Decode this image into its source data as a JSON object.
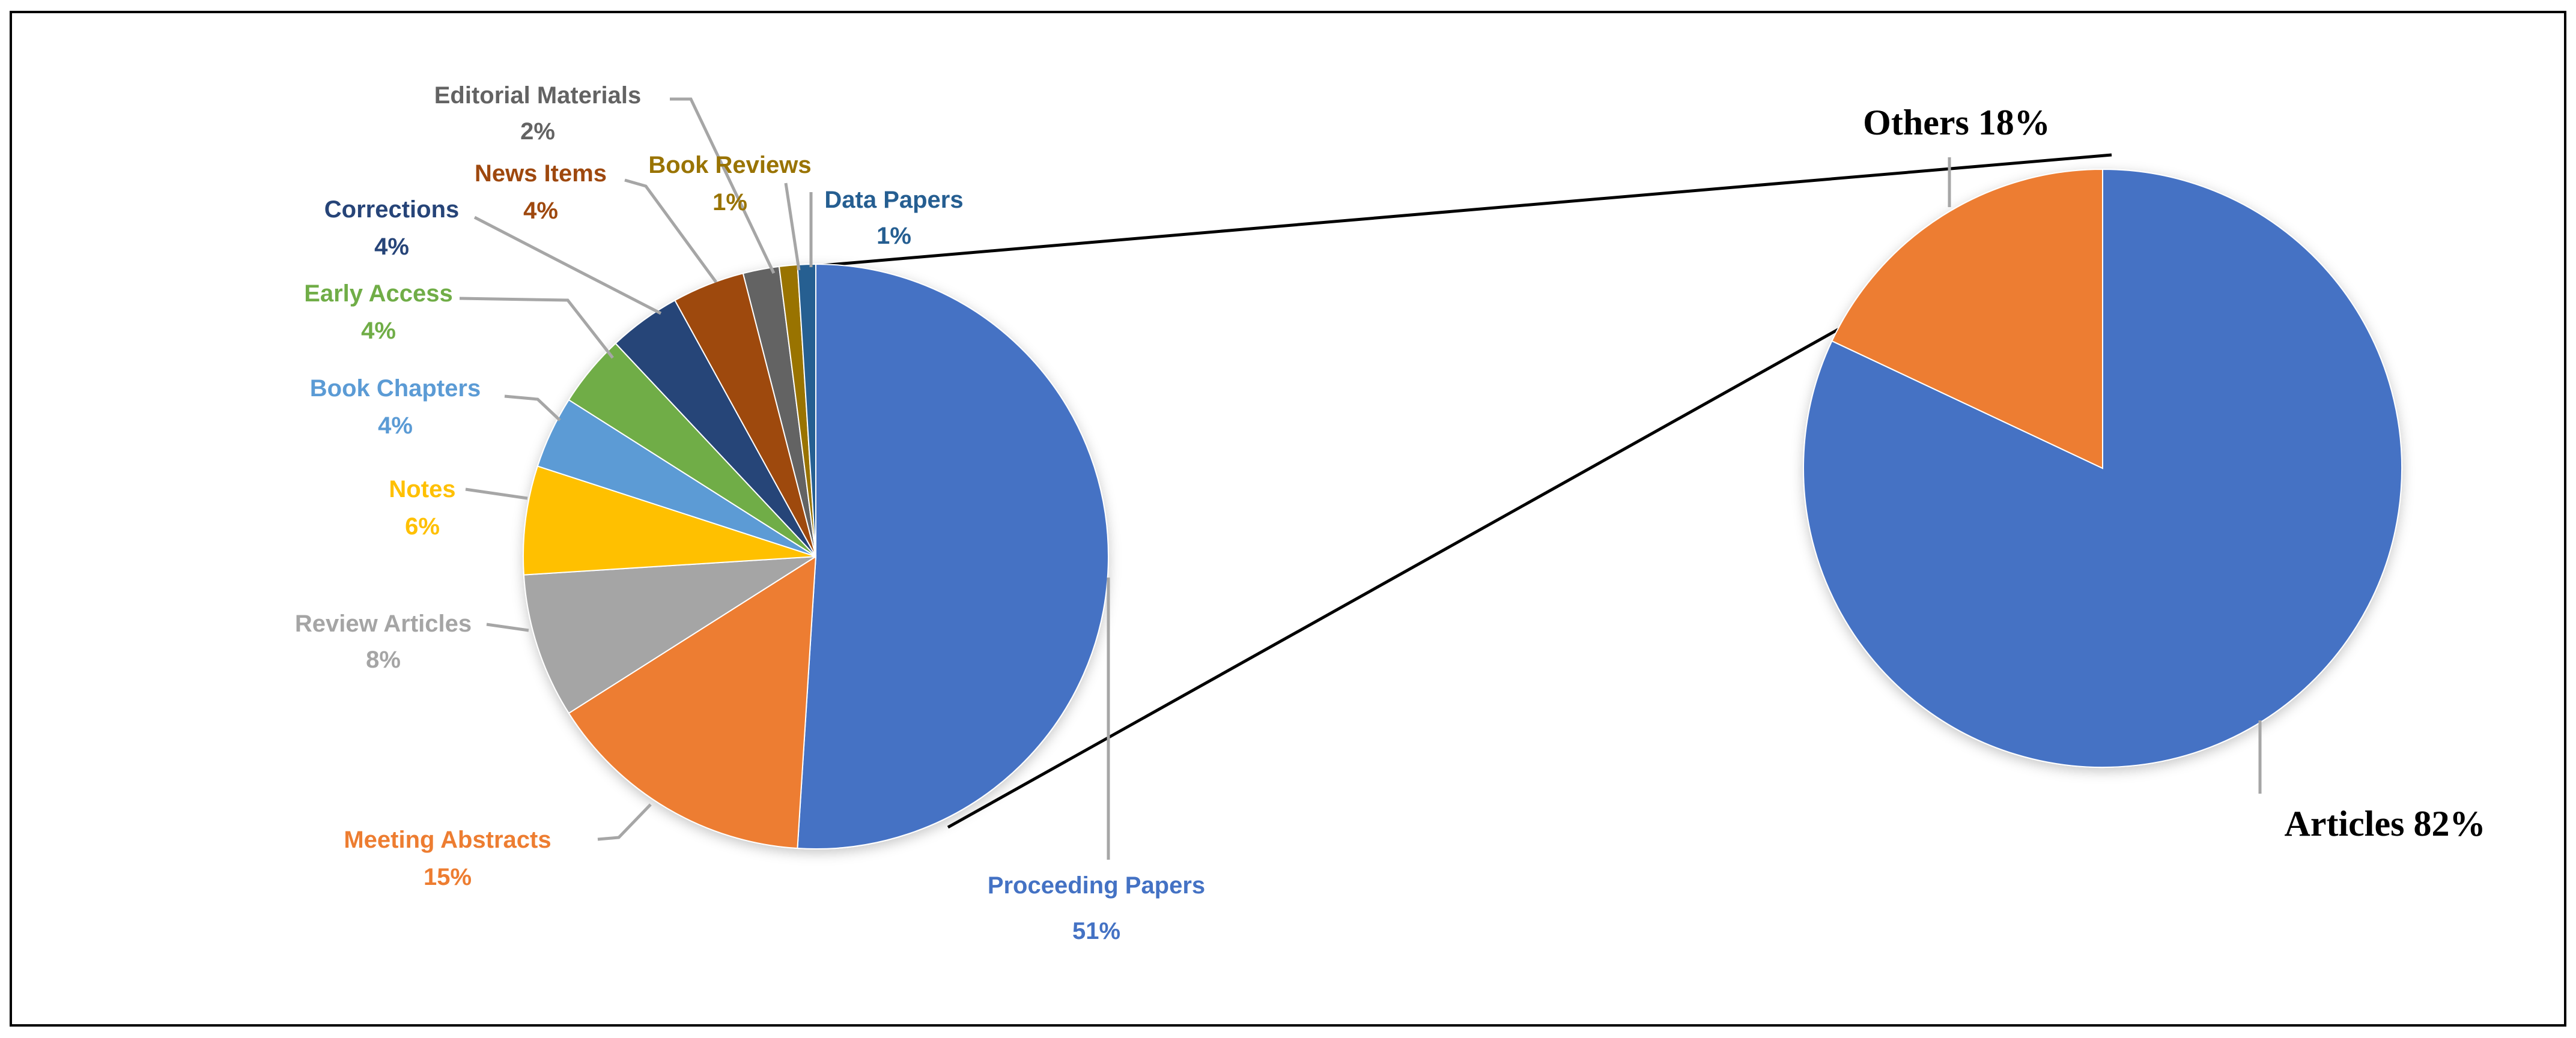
{
  "chart_data": [
    {
      "type": "pie",
      "unit": "%",
      "slices": [
        {
          "name": "Proceeding Papers",
          "value": 51,
          "label": "51%",
          "color": "#4472C4"
        },
        {
          "name": "Meeting Abstracts",
          "value": 15,
          "label": "15%",
          "color": "#ED7D31"
        },
        {
          "name": "Review Articles",
          "value": 8,
          "label": "8%",
          "color": "#A5A5A5"
        },
        {
          "name": "Notes",
          "value": 6,
          "label": "6%",
          "color": "#FFC000"
        },
        {
          "name": "Book Chapters",
          "value": 4,
          "label": "4%",
          "color": "#5B9BD5"
        },
        {
          "name": "Early Access",
          "value": 4,
          "label": "4%",
          "color": "#70AD47"
        },
        {
          "name": "Corrections",
          "value": 4,
          "label": "4%",
          "color": "#264478"
        },
        {
          "name": "News Items",
          "value": 4,
          "label": "4%",
          "color": "#9E480E"
        },
        {
          "name": "Editorial Materials",
          "value": 2,
          "label": "2%",
          "color": "#636363"
        },
        {
          "name": "Book Reviews",
          "value": 1,
          "label": "1%",
          "color": "#997300"
        },
        {
          "name": "Data Papers",
          "value": 1,
          "label": "1%",
          "color": "#255E91"
        }
      ]
    },
    {
      "type": "pie",
      "unit": "%",
      "slices": [
        {
          "name": "Articles",
          "value": 82,
          "label": "Articles 82%",
          "color": "#4472C4"
        },
        {
          "name": "Others",
          "value": 18,
          "label": "Others 18%",
          "color": "#ED7D31"
        }
      ]
    }
  ],
  "colors": {
    "border": "#000000",
    "leader": "#A6A6A6",
    "connector": "#000000",
    "label_text_dark": "#000000"
  }
}
